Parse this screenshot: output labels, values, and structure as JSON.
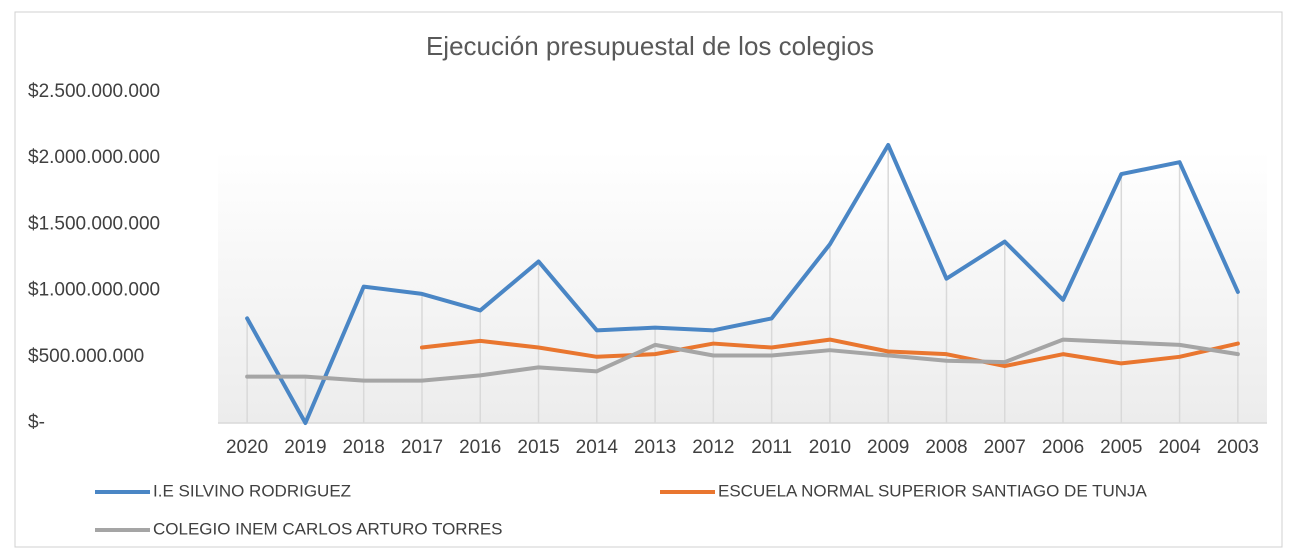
{
  "chart_data": {
    "type": "line",
    "title": "Ejecución  presupuestal  de los colegios",
    "categories": [
      "2020",
      "2019",
      "2018",
      "2017",
      "2016",
      "2015",
      "2014",
      "2013",
      "2012",
      "2011",
      "2010",
      "2009",
      "2008",
      "2007",
      "2006",
      "2005",
      "2004",
      "2003"
    ],
    "series": [
      {
        "name": "I.E SILVINO RODRIGUEZ",
        "color": "#4a86c5",
        "values": [
          790000000,
          0,
          1030000000,
          975000000,
          850000000,
          1220000000,
          700000000,
          720000000,
          700000000,
          790000000,
          1350000000,
          2100000000,
          1090000000,
          1370000000,
          930000000,
          1880000000,
          1970000000,
          990000000
        ]
      },
      {
        "name": "ESCUELA NORMAL SUPERIOR SANTIAGO DE TUNJA",
        "color": "#e9762f",
        "values": [
          null,
          null,
          null,
          570000000,
          620000000,
          570000000,
          500000000,
          520000000,
          600000000,
          570000000,
          630000000,
          540000000,
          520000000,
          430000000,
          520000000,
          450000000,
          500000000,
          600000000
        ]
      },
      {
        "name": "COLEGIO INEM CARLOS ARTURO TORRES",
        "color": "#a5a5a5",
        "values": [
          350000000,
          350000000,
          320000000,
          320000000,
          360000000,
          420000000,
          390000000,
          590000000,
          510000000,
          510000000,
          550000000,
          510000000,
          470000000,
          460000000,
          630000000,
          610000000,
          590000000,
          520000000
        ]
      }
    ],
    "ylim": [
      0,
      2500000000
    ],
    "yticks": [
      {
        "value": 0,
        "label": "$-"
      },
      {
        "value": 500000000,
        "label": "$500.000.000"
      },
      {
        "value": 1000000000,
        "label": "$1.000.000.000"
      },
      {
        "value": 1500000000,
        "label": "$1.500.000.000"
      },
      {
        "value": 2000000000,
        "label": "$2.000.000.000"
      },
      {
        "value": 2500000000,
        "label": "$2.500.000.000"
      }
    ],
    "legend": "bottom"
  }
}
